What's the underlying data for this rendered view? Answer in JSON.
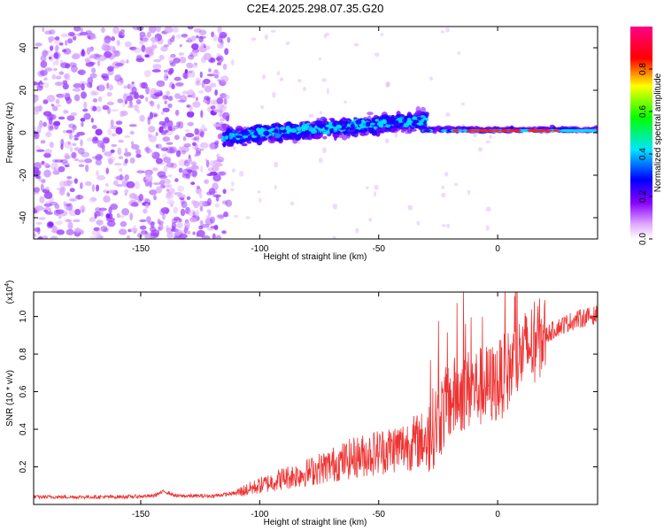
{
  "title": "C2E4.2025.298.07.35.G20",
  "chart_data": [
    {
      "type": "heatmap",
      "name": "spectrogram",
      "xlabel": "Height of straight line (km)",
      "ylabel": "Frequency (Hz)",
      "xlim": [
        -195,
        42
      ],
      "ylim": [
        -50,
        50
      ],
      "xticks": [
        -150,
        -100,
        -50,
        0
      ],
      "yticks": [
        -40,
        -20,
        0,
        20,
        40
      ],
      "xtick_labels": [
        "-150",
        "-100",
        "-50",
        "0"
      ],
      "ytick_labels": [
        "-40",
        "-20",
        "0",
        "20",
        "40"
      ],
      "colorbar": {
        "label": "Normalized spectral amplitude",
        "range": [
          0,
          1
        ],
        "ticks": [
          0.0,
          0.2,
          0.4,
          0.6,
          0.8
        ],
        "tick_labels": [
          "0.0",
          "0.2",
          "0.4",
          "0.6",
          "0.8"
        ],
        "colormap": [
          "#ffffff",
          "#8800ff",
          "#0000ff",
          "#00ffff",
          "#00ff00",
          "#ffff00",
          "#ff0000",
          "#ff00aa"
        ]
      },
      "regions": [
        {
          "x": [
            -195,
            -115
          ],
          "description": "broadband noise",
          "intensity": 0.25
        },
        {
          "x": [
            -115,
            -30
          ],
          "description": "band centered near 0-8 Hz",
          "intensity": 0.4
        },
        {
          "x": [
            -30,
            42
          ],
          "description": "narrow band near 1 Hz",
          "intensity": 0.85
        }
      ]
    },
    {
      "type": "line",
      "name": "snr",
      "xlabel": "Height of straight line (km)",
      "ylabel": "SNR (10 * v/v)",
      "y_multiplier": "(x10",
      "y_multiplier_exp": "4",
      "y_multiplier_close": ")",
      "xlim": [
        -195,
        42
      ],
      "ylim": [
        0,
        1.13
      ],
      "xticks": [
        -150,
        -100,
        -50,
        0
      ],
      "yticks": [
        0.2,
        0.4,
        0.6,
        0.8,
        1.0
      ],
      "xtick_labels": [
        "-150",
        "-100",
        "-50",
        "0"
      ],
      "ytick_labels": [
        "0.2",
        "0.4",
        "0.6",
        "0.8",
        "1.0"
      ],
      "color": "#ee3333",
      "series": [
        {
          "name": "SNR",
          "x": [
            -195,
            -180,
            -160,
            -145,
            -140,
            -135,
            -120,
            -110,
            -100,
            -90,
            -80,
            -70,
            -60,
            -50,
            -40,
            -35,
            -30,
            -25,
            -20,
            -15,
            -10,
            -5,
            0,
            5,
            10,
            15,
            20,
            25,
            30,
            35,
            42
          ],
          "y": [
            0.04,
            0.04,
            0.04,
            0.045,
            0.07,
            0.045,
            0.045,
            0.06,
            0.1,
            0.14,
            0.17,
            0.21,
            0.25,
            0.28,
            0.31,
            0.33,
            0.35,
            0.45,
            0.55,
            0.6,
            0.62,
            0.63,
            0.65,
            0.72,
            0.8,
            0.86,
            0.9,
            0.94,
            0.97,
            0.99,
            1.01
          ]
        }
      ]
    }
  ]
}
